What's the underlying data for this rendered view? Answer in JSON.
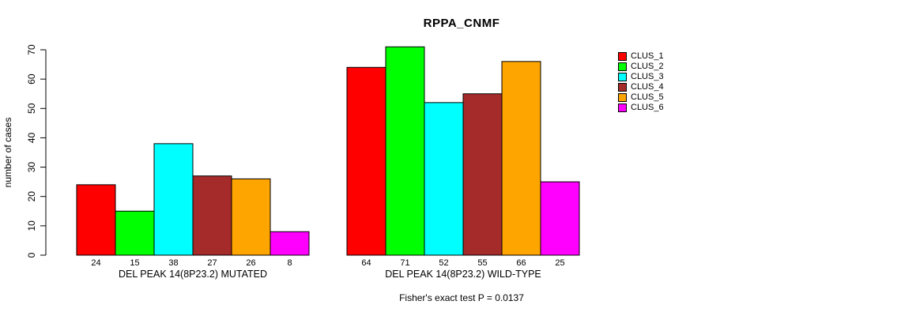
{
  "chart_data": {
    "type": "bar",
    "title": "RPPA_CNMF",
    "ylabel": "number of cases",
    "ylim": [
      0,
      70
    ],
    "yticks": [
      0,
      10,
      20,
      30,
      40,
      50,
      60,
      70
    ],
    "grid": false,
    "legend_position": "right",
    "series": [
      {
        "name": "CLUS_1",
        "color": "#FF0000"
      },
      {
        "name": "CLUS_2",
        "color": "#00FF00"
      },
      {
        "name": "CLUS_3",
        "color": "#00FFFF"
      },
      {
        "name": "CLUS_4",
        "color": "#A52A2A"
      },
      {
        "name": "CLUS_5",
        "color": "#FFA500"
      },
      {
        "name": "CLUS_6",
        "color": "#FF00FF"
      }
    ],
    "groups": [
      {
        "label": "DEL PEAK 14(8P23.2) MUTATED",
        "values": [
          24,
          15,
          38,
          27,
          26,
          8
        ]
      },
      {
        "label": "DEL PEAK 14(8P23.2) WILD-TYPE",
        "values": [
          64,
          71,
          52,
          55,
          66,
          25
        ]
      }
    ],
    "annotation": "Fisher's exact test P = 0.0137"
  }
}
